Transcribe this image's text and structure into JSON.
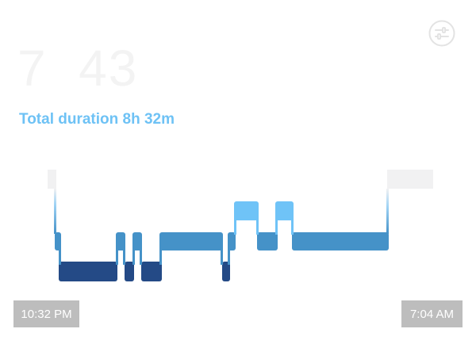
{
  "header": {
    "time_hours": "7",
    "time_minutes": "43",
    "total_duration": "Total duration 8h 32m"
  },
  "settings": {
    "icon": "sliders-icon"
  },
  "hypnogram": {
    "stage_colors": {
      "awake": "#f1f1f2",
      "rem": "#6fc3f7",
      "light": "#4592c8",
      "deep": "#244a86"
    },
    "start_label": "10:32 PM",
    "end_label": "7:04 AM"
  }
}
